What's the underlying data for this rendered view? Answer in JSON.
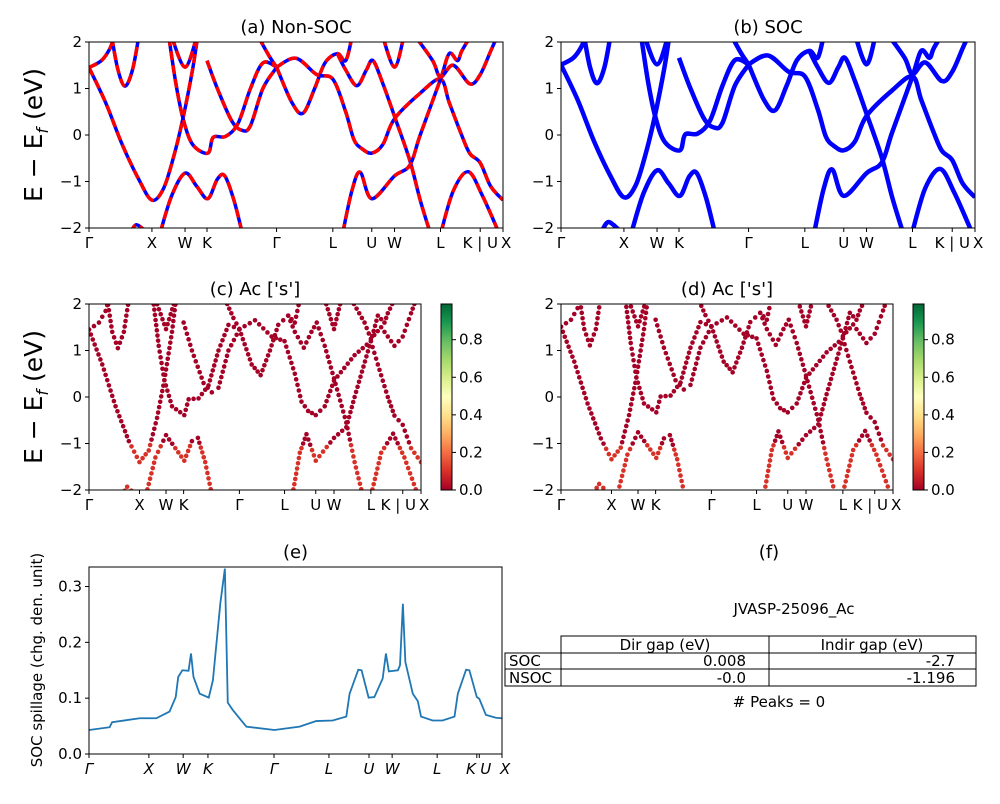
{
  "figure": {
    "ylabel_band": "E − E",
    "ylabel_band_sub": "f",
    "ylabel_band_unit": " (eV)",
    "colorbar_ticks": [
      "0.0",
      "0.2",
      "0.4",
      "0.6",
      "0.8"
    ],
    "colorbar_range": [
      0,
      0.99
    ],
    "colormap": [
      "#a50026",
      "#d73027",
      "#f46d43",
      "#fdae61",
      "#fee08b",
      "#ffffbf",
      "#d9ef8b",
      "#a6d96a",
      "#66bd63",
      "#1a9850",
      "#006837"
    ]
  },
  "chart_data": [
    {
      "type": "line",
      "title": "(a) Non-SOC",
      "ylim": [
        -2,
        2
      ],
      "yticks": [
        "2",
        "1",
        "0",
        "−1",
        "−2"
      ],
      "xticks": [
        {
          "k": 0,
          "label": "Γ"
        },
        {
          "k": 0.152,
          "label": "X"
        },
        {
          "k": 0.232,
          "label": "W"
        },
        {
          "k": 0.285,
          "label": "K"
        },
        {
          "k": 0.453,
          "label": "Γ"
        },
        {
          "k": 0.589,
          "label": "L"
        },
        {
          "k": 0.683,
          "label": "U"
        },
        {
          "k": 0.738,
          "label": "W"
        },
        {
          "k": 0.849,
          "label": "L"
        },
        {
          "k": 0.945,
          "label": "K | U"
        },
        {
          "k": 1.0,
          "label": "X"
        }
      ],
      "colors": {
        "line": "#ff0000",
        "dash": "#0000ff"
      },
      "bands": [
        [
          [
            0.1,
            -2.1
          ],
          [
            0.115,
            -1.93
          ],
          [
            0.14,
            -2.1
          ]
        ],
        [
          [
            0.172,
            -2.1
          ],
          [
            0.2,
            -1.3
          ],
          [
            0.232,
            -0.82
          ],
          [
            0.26,
            -1.1
          ],
          [
            0.287,
            -1.37
          ],
          [
            0.31,
            -0.95
          ],
          [
            0.328,
            -0.88
          ],
          [
            0.35,
            -1.4
          ],
          [
            0.37,
            -2.1
          ]
        ],
        [
          [
            0,
            1.45
          ],
          [
            0.04,
            0.7
          ],
          [
            0.08,
            -0.2
          ],
          [
            0.12,
            -0.95
          ],
          [
            0.152,
            -1.4
          ],
          [
            0.18,
            -1.15
          ],
          [
            0.205,
            -0.45
          ],
          [
            0.227,
            0.36
          ],
          [
            0.25,
            1.4
          ],
          [
            0.262,
            2.1
          ]
        ],
        [
          [
            0.193,
            2.1
          ],
          [
            0.21,
            1.1
          ],
          [
            0.227,
            0.36
          ],
          [
            0.25,
            -0.2
          ],
          [
            0.287,
            -0.39
          ],
          [
            0.3,
            -0.05
          ],
          [
            0.33,
            -0.03
          ],
          [
            0.36,
            0.25
          ],
          [
            0.39,
            1.0
          ],
          [
            0.42,
            1.55
          ],
          [
            0.453,
            1.46
          ]
        ],
        [
          [
            0.285,
            1.6
          ],
          [
            0.31,
            1.0
          ],
          [
            0.345,
            0.3
          ],
          [
            0.37,
            0.1
          ],
          [
            0.39,
            0.2
          ],
          [
            0.42,
            1.0
          ],
          [
            0.453,
            1.45
          ]
        ],
        [
          [
            0,
            1.45
          ],
          [
            0.03,
            1.6
          ],
          [
            0.05,
            1.85
          ],
          [
            0.06,
            2.1
          ]
        ],
        [
          [
            0.055,
            2.1
          ],
          [
            0.07,
            1.4
          ],
          [
            0.087,
            1.05
          ],
          [
            0.105,
            1.4
          ],
          [
            0.12,
            2.1
          ]
        ],
        [
          [
            0.2,
            2.1
          ],
          [
            0.232,
            1.46
          ],
          [
            0.26,
            2.1
          ]
        ],
        [
          [
            0.41,
            2.1
          ],
          [
            0.435,
            1.7
          ],
          [
            0.453,
            1.46
          ]
        ],
        [
          [
            0.453,
            1.46
          ],
          [
            0.49,
            0.7
          ],
          [
            0.517,
            0.47
          ],
          [
            0.545,
            1.0
          ],
          [
            0.57,
            1.55
          ],
          [
            0.6,
            1.75
          ],
          [
            0.62,
            1.6
          ],
          [
            0.635,
            2.1
          ]
        ],
        [
          [
            0.453,
            1.46
          ],
          [
            0.5,
            1.65
          ],
          [
            0.55,
            1.3
          ],
          [
            0.589,
            1.2
          ],
          [
            0.62,
            0.5
          ],
          [
            0.64,
            -0.1
          ],
          [
            0.66,
            -0.3
          ],
          [
            0.683,
            -0.39
          ],
          [
            0.71,
            -0.2
          ],
          [
            0.738,
            0.35
          ],
          [
            0.8,
            0.9
          ],
          [
            0.849,
            1.2
          ],
          [
            0.87,
            0.7
          ],
          [
            0.9,
            0.0
          ],
          [
            0.92,
            -0.4
          ],
          [
            0.945,
            -0.6
          ],
          [
            0.97,
            -1.1
          ],
          [
            1.0,
            -1.4
          ]
        ],
        [
          [
            0.6,
            1.75
          ],
          [
            0.62,
            1.4
          ],
          [
            0.647,
            1.06
          ],
          [
            0.67,
            1.4
          ],
          [
            0.686,
            1.6
          ],
          [
            0.71,
            1.1
          ],
          [
            0.738,
            0.4
          ],
          [
            0.775,
            -0.55
          ],
          [
            0.8,
            -1.4
          ],
          [
            0.824,
            -2.1
          ]
        ],
        [
          [
            0.613,
            -2.1
          ],
          [
            0.635,
            -1.2
          ],
          [
            0.655,
            -0.8
          ],
          [
            0.683,
            -1.37
          ],
          [
            0.738,
            -0.88
          ],
          [
            0.775,
            -0.65
          ],
          [
            0.8,
            0.0
          ],
          [
            0.849,
            1.2
          ],
          [
            0.87,
            1.75
          ],
          [
            0.89,
            1.6
          ],
          [
            0.9,
            1.8
          ],
          [
            0.92,
            2.1
          ]
        ],
        [
          [
            0.85,
            -2.1
          ],
          [
            0.88,
            -1.2
          ],
          [
            0.916,
            -0.79
          ],
          [
            0.95,
            -1.3
          ],
          [
            0.99,
            -2.1
          ]
        ],
        [
          [
            0.71,
            2.1
          ],
          [
            0.738,
            1.46
          ],
          [
            0.76,
            2.1
          ]
        ],
        [
          [
            0.79,
            2.1
          ],
          [
            0.83,
            1.6
          ],
          [
            0.849,
            1.25
          ],
          [
            0.88,
            1.5
          ],
          [
            0.92,
            1.1
          ],
          [
            0.945,
            1.3
          ],
          [
            0.97,
            1.8
          ],
          [
            0.985,
            2.1
          ]
        ]
      ]
    },
    {
      "type": "line",
      "title": "(b) SOC",
      "ylim": [
        -2,
        2
      ],
      "yticks": [
        "2",
        "1",
        "0",
        "−1",
        "−2"
      ],
      "xticks": [
        {
          "k": 0,
          "label": "Γ"
        },
        {
          "k": 0.152,
          "label": "X"
        },
        {
          "k": 0.232,
          "label": "W"
        },
        {
          "k": 0.285,
          "label": "K"
        },
        {
          "k": 0.453,
          "label": "Γ"
        },
        {
          "k": 0.589,
          "label": "L"
        },
        {
          "k": 0.683,
          "label": "U"
        },
        {
          "k": 0.738,
          "label": "W"
        },
        {
          "k": 0.849,
          "label": "L"
        },
        {
          "k": 0.945,
          "label": "K | U"
        },
        {
          "k": 1.0,
          "label": "X"
        }
      ],
      "colors": {
        "line": "#0000ff"
      }
    },
    {
      "type": "scatter",
      "title": "(c)  Ac ['s']",
      "ylim": [
        -2,
        2
      ],
      "yticks": [
        "2",
        "1",
        "0",
        "−1",
        "−2"
      ],
      "xticks": [
        {
          "k": 0,
          "label": "Γ"
        },
        {
          "k": 0.152,
          "label": "X"
        },
        {
          "k": 0.232,
          "label": "W"
        },
        {
          "k": 0.285,
          "label": "K"
        },
        {
          "k": 0.453,
          "label": "Γ"
        },
        {
          "k": 0.589,
          "label": "L"
        },
        {
          "k": 0.683,
          "label": "U"
        },
        {
          "k": 0.738,
          "label": "W"
        },
        {
          "k": 0.849,
          "label": "L"
        },
        {
          "k": 0.945,
          "label": "K | U"
        },
        {
          "k": 1.0,
          "label": "X"
        }
      ],
      "color_value": 0.0
    },
    {
      "type": "scatter",
      "title": "(d) Ac ['s']",
      "ylim": [
        -2,
        2
      ],
      "yticks": [
        "2",
        "1",
        "0",
        "−1",
        "−2"
      ],
      "xticks": [
        {
          "k": 0,
          "label": "Γ"
        },
        {
          "k": 0.152,
          "label": "X"
        },
        {
          "k": 0.232,
          "label": "W"
        },
        {
          "k": 0.285,
          "label": "K"
        },
        {
          "k": 0.453,
          "label": "Γ"
        },
        {
          "k": 0.589,
          "label": "L"
        },
        {
          "k": 0.683,
          "label": "U"
        },
        {
          "k": 0.738,
          "label": "W"
        },
        {
          "k": 0.849,
          "label": "L"
        },
        {
          "k": 0.945,
          "label": "K | U"
        },
        {
          "k": 1.0,
          "label": "X"
        }
      ],
      "color_value": 0.0
    },
    {
      "type": "line",
      "title": "(e)",
      "ylabel": "SOC spillage (chg. den. unit)",
      "ylim": [
        0,
        0.335
      ],
      "yticks": [
        0.0,
        0.1,
        0.2,
        0.3
      ],
      "xticks": [
        {
          "k": 0,
          "label": "Γ"
        },
        {
          "k": 0.145,
          "label": "X"
        },
        {
          "k": 0.228,
          "label": "W"
        },
        {
          "k": 0.288,
          "label": "K"
        },
        {
          "k": 0.448,
          "label": "Γ"
        },
        {
          "k": 0.581,
          "label": "L"
        },
        {
          "k": 0.678,
          "label": "U"
        },
        {
          "k": 0.734,
          "label": "W"
        },
        {
          "k": 0.843,
          "label": "L"
        },
        {
          "k": 0.939,
          "label": "K"
        },
        {
          "k": 0.945,
          "label": "U"
        },
        {
          "k": 1.0,
          "label": "X"
        }
      ],
      "color": "#1f77b4",
      "points": [
        [
          0,
          0.043
        ],
        [
          0.05,
          0.048
        ],
        [
          0.056,
          0.057
        ],
        [
          0.123,
          0.064
        ],
        [
          0.163,
          0.064
        ],
        [
          0.195,
          0.076
        ],
        [
          0.21,
          0.102
        ],
        [
          0.216,
          0.138
        ],
        [
          0.226,
          0.15
        ],
        [
          0.241,
          0.149
        ],
        [
          0.247,
          0.18
        ],
        [
          0.253,
          0.138
        ],
        [
          0.268,
          0.108
        ],
        [
          0.29,
          0.101
        ],
        [
          0.3,
          0.132
        ],
        [
          0.318,
          0.27
        ],
        [
          0.329,
          0.332
        ],
        [
          0.336,
          0.092
        ],
        [
          0.348,
          0.079
        ],
        [
          0.381,
          0.049
        ],
        [
          0.449,
          0.043
        ],
        [
          0.51,
          0.049
        ],
        [
          0.55,
          0.059
        ],
        [
          0.59,
          0.06
        ],
        [
          0.623,
          0.067
        ],
        [
          0.631,
          0.108
        ],
        [
          0.652,
          0.151
        ],
        [
          0.66,
          0.15
        ],
        [
          0.677,
          0.101
        ],
        [
          0.691,
          0.102
        ],
        [
          0.711,
          0.135
        ],
        [
          0.719,
          0.18
        ],
        [
          0.726,
          0.148
        ],
        [
          0.748,
          0.15
        ],
        [
          0.753,
          0.159
        ],
        [
          0.76,
          0.269
        ],
        [
          0.766,
          0.165
        ],
        [
          0.784,
          0.108
        ],
        [
          0.796,
          0.095
        ],
        [
          0.804,
          0.067
        ],
        [
          0.832,
          0.06
        ],
        [
          0.856,
          0.06
        ],
        [
          0.885,
          0.067
        ],
        [
          0.893,
          0.108
        ],
        [
          0.913,
          0.151
        ],
        [
          0.921,
          0.15
        ],
        [
          0.939,
          0.102
        ],
        [
          0.945,
          0.099
        ],
        [
          0.961,
          0.07
        ],
        [
          0.985,
          0.065
        ],
        [
          1.0,
          0.064
        ]
      ]
    },
    {
      "type": "table",
      "title": "(f)",
      "subtitle": "JVASP-25096_Ac",
      "columns": [
        "",
        "Dir gap (eV)",
        "Indir gap (eV)"
      ],
      "rows": [
        [
          "SOC",
          "0.008",
          "-2.7"
        ],
        [
          "NSOC",
          "-0.0",
          "-1.196"
        ]
      ],
      "footer": "# Peaks = 0"
    }
  ]
}
